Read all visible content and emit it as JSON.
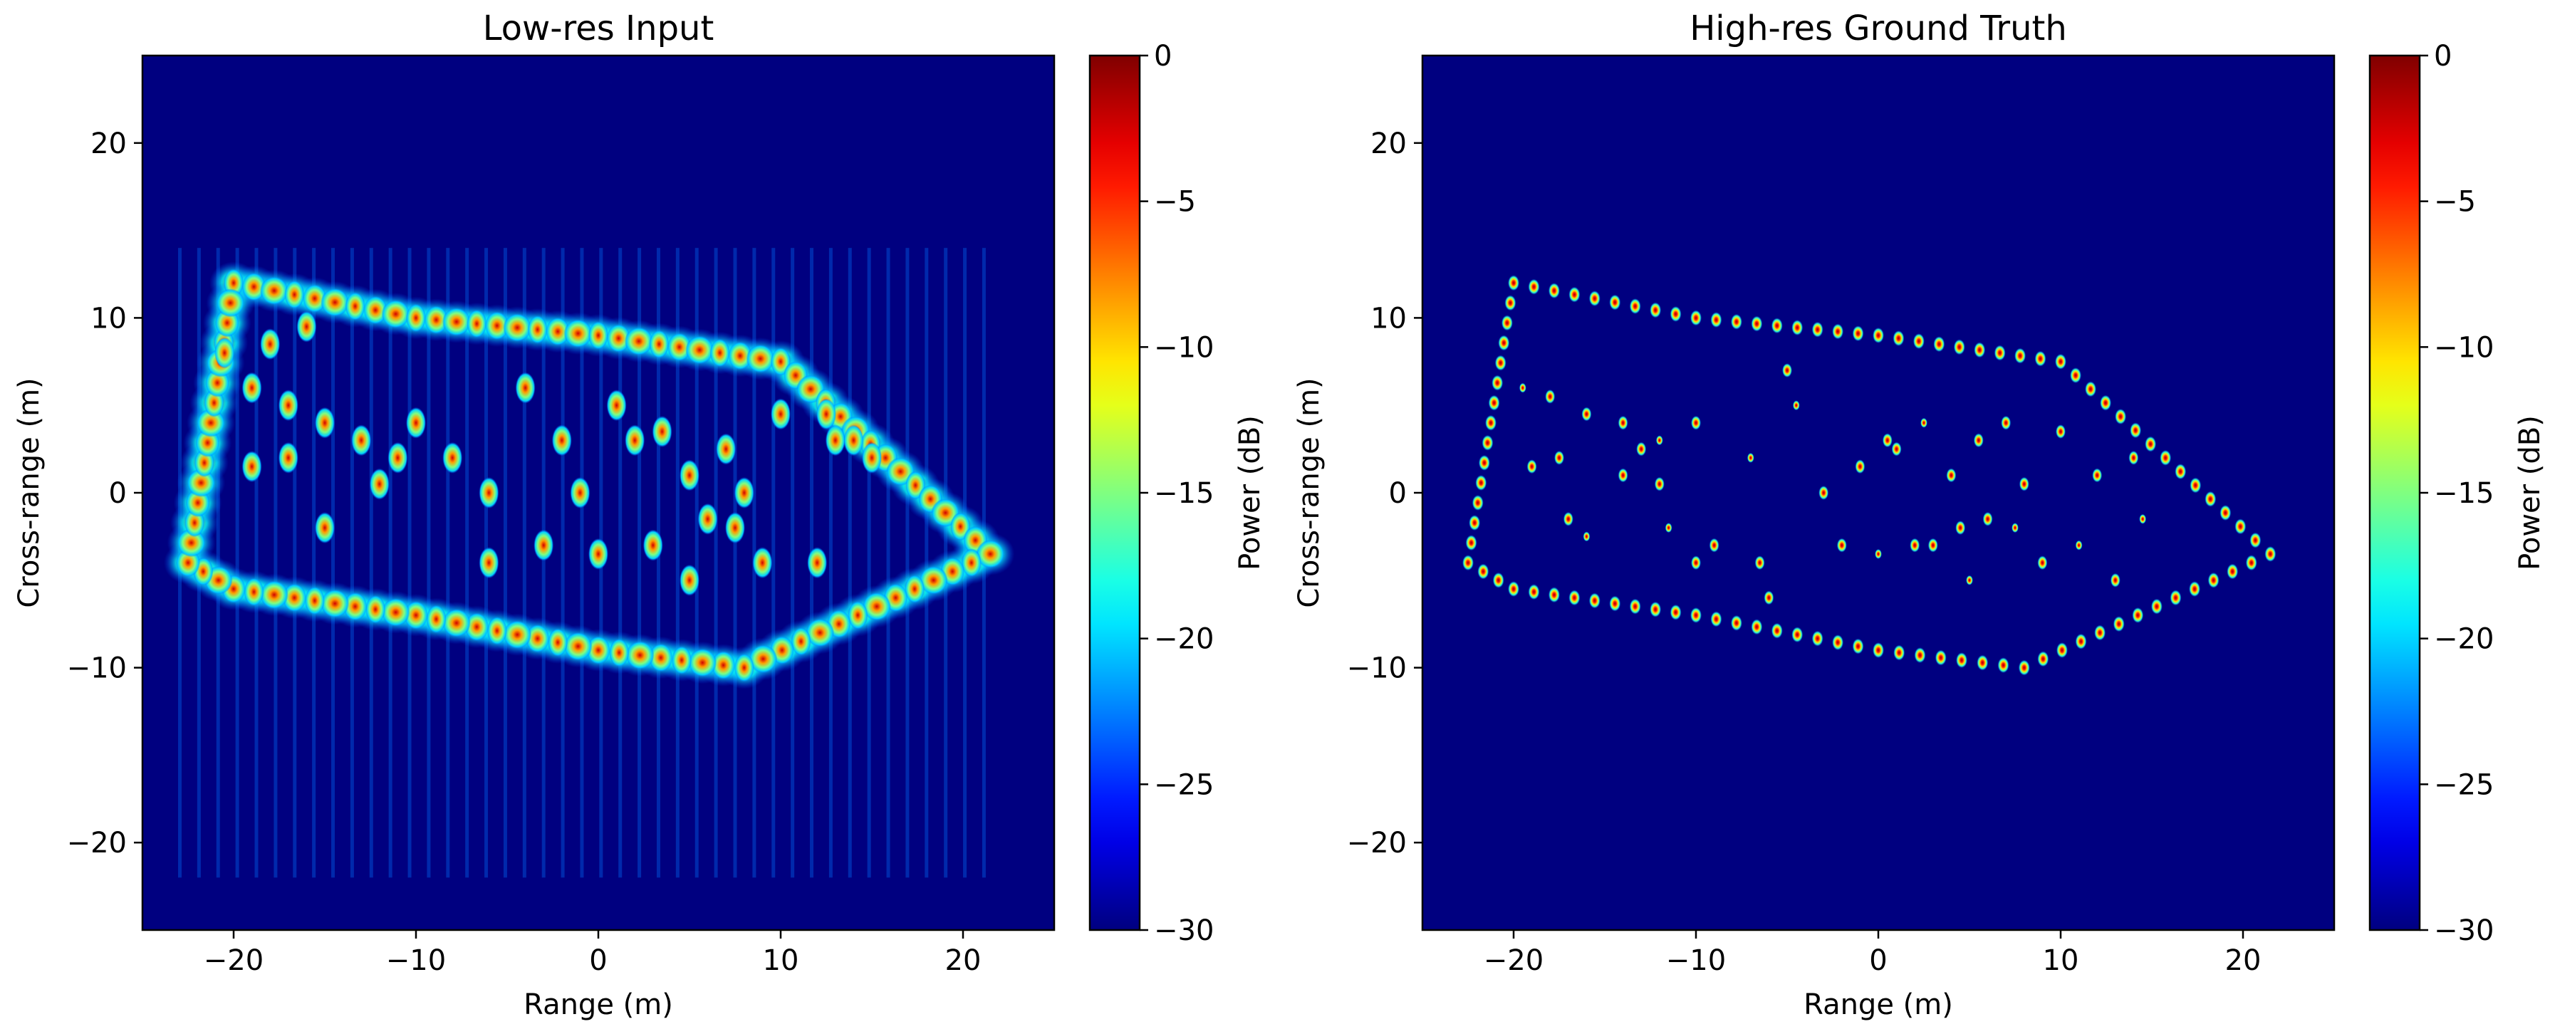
{
  "chart_data": [
    {
      "type": "heatmap",
      "title": "Low-res Input",
      "xlabel": "Range (m)",
      "ylabel": "Cross-range (m)",
      "xlim": [
        -25,
        25
      ],
      "ylim": [
        -25,
        25
      ],
      "xticks": [
        -20,
        -10,
        0,
        10,
        20
      ],
      "yticks": [
        -20,
        -10,
        0,
        10,
        20
      ],
      "xtick_labels": [
        "−20",
        "−10",
        "0",
        "10",
        "20"
      ],
      "ytick_labels": [
        "−20",
        "−10",
        "0",
        "10",
        "20"
      ],
      "background_db": -30,
      "colorbar": {
        "label": "Power (dB)",
        "range": [
          -30,
          0
        ],
        "ticks": [
          "0",
          "−5",
          "−10",
          "−15",
          "−20",
          "−25",
          "−30"
        ],
        "colormap": "jet"
      },
      "outline_vertices": [
        [
          -20,
          12
        ],
        [
          -10,
          10
        ],
        [
          0,
          9
        ],
        [
          10,
          7.5
        ],
        [
          21.5,
          -3.5
        ],
        [
          8,
          -10
        ],
        [
          0,
          -9
        ],
        [
          -10,
          -7
        ],
        [
          -20,
          -5.5
        ],
        [
          -22.5,
          -4
        ]
      ],
      "interior_scatterers": [
        [
          -19,
          6
        ],
        [
          -17,
          5
        ],
        [
          -15,
          4
        ],
        [
          -13,
          3
        ],
        [
          -11,
          2
        ],
        [
          -19,
          1.5
        ],
        [
          -17,
          2
        ],
        [
          -15,
          -2
        ],
        [
          -12,
          0.5
        ],
        [
          -10,
          4
        ],
        [
          -8,
          2
        ],
        [
          -6,
          0
        ],
        [
          -6,
          -4
        ],
        [
          -4,
          6
        ],
        [
          -2,
          3
        ],
        [
          -3,
          -3
        ],
        [
          -1,
          0
        ],
        [
          0,
          -3.5
        ],
        [
          1,
          5
        ],
        [
          2,
          3
        ],
        [
          3,
          -3
        ],
        [
          3.5,
          3.5
        ],
        [
          5,
          1
        ],
        [
          5,
          -5
        ],
        [
          6,
          -1.5
        ],
        [
          7,
          2.5
        ],
        [
          7.5,
          -2
        ],
        [
          8,
          0
        ],
        [
          9,
          -4
        ],
        [
          10,
          4.5
        ],
        [
          12,
          -4
        ],
        [
          13,
          3
        ],
        [
          -20.5,
          8
        ],
        [
          -18,
          8.5
        ],
        [
          -16,
          9.5
        ],
        [
          12.5,
          4.5
        ],
        [
          14,
          3
        ],
        [
          15,
          2
        ]
      ]
    },
    {
      "type": "heatmap",
      "title": "High-res Ground Truth",
      "xlabel": "Range (m)",
      "ylabel": "Cross-range (m)",
      "xlim": [
        -25,
        25
      ],
      "ylim": [
        -25,
        25
      ],
      "xticks": [
        -20,
        -10,
        0,
        10,
        20
      ],
      "yticks": [
        -20,
        -10,
        0,
        10,
        20
      ],
      "xtick_labels": [
        "−20",
        "−10",
        "0",
        "10",
        "20"
      ],
      "ytick_labels": [
        "−20",
        "−10",
        "0",
        "10",
        "20"
      ],
      "background_db": -30,
      "colorbar": {
        "label": "Power (dB)",
        "range": [
          -30,
          0
        ],
        "ticks": [
          "0",
          "−5",
          "−10",
          "−15",
          "−20",
          "−25",
          "−30"
        ],
        "colormap": "jet"
      },
      "outline_vertices": [
        [
          -20,
          12
        ],
        [
          -10,
          10
        ],
        [
          0,
          9
        ],
        [
          10,
          7.5
        ],
        [
          21.5,
          -3.5
        ],
        [
          8,
          -10
        ],
        [
          0,
          -9
        ],
        [
          -10,
          -7
        ],
        [
          -20,
          -5.5
        ],
        [
          -22.5,
          -4
        ]
      ],
      "interior_scatterers": [
        [
          -19.5,
          6
        ],
        [
          -18,
          5.5
        ],
        [
          -16,
          4.5
        ],
        [
          -14,
          4
        ],
        [
          -12,
          3
        ],
        [
          -19,
          1.5
        ],
        [
          -17.5,
          2
        ],
        [
          -17,
          -1.5
        ],
        [
          -16,
          -2.5
        ],
        [
          -14,
          1
        ],
        [
          -13,
          2.5
        ],
        [
          -12,
          0.5
        ],
        [
          -11.5,
          -2
        ],
        [
          -10,
          4
        ],
        [
          -10,
          -4
        ],
        [
          -9,
          -3
        ],
        [
          -7,
          2
        ],
        [
          -6.5,
          -4
        ],
        [
          -6,
          -6
        ],
        [
          -5,
          7
        ],
        [
          -4.5,
          5
        ],
        [
          -3,
          0
        ],
        [
          -2,
          -3
        ],
        [
          -1,
          1.5
        ],
        [
          0,
          -3.5
        ],
        [
          0.5,
          3
        ],
        [
          1,
          2.5
        ],
        [
          2,
          -3
        ],
        [
          2.5,
          4
        ],
        [
          3,
          -3
        ],
        [
          4,
          1
        ],
        [
          4.5,
          -2
        ],
        [
          5,
          -5
        ],
        [
          5.5,
          3
        ],
        [
          6,
          -1.5
        ],
        [
          7,
          4
        ],
        [
          7.5,
          -2
        ],
        [
          8,
          0.5
        ],
        [
          9,
          -4
        ],
        [
          10,
          3.5
        ],
        [
          11,
          -3
        ],
        [
          12,
          1
        ],
        [
          13,
          -5
        ],
        [
          14,
          2
        ],
        [
          14.5,
          -1.5
        ]
      ]
    }
  ]
}
